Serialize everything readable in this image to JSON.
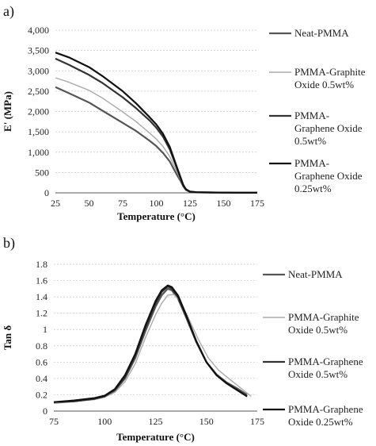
{
  "chart_data": [
    {
      "panel": "a)",
      "type": "line",
      "xlabel": "Temperature (°C)",
      "ylabel": "E' (MPa)",
      "xlim": [
        25,
        175
      ],
      "ylim": [
        0,
        4000
      ],
      "xticks": [
        "25",
        "50",
        "75",
        "100",
        "125",
        "150",
        "175"
      ],
      "yticks": [
        "0",
        "500",
        "1,000",
        "1,500",
        "2,000",
        "2,500",
        "3,000",
        "3,500",
        "4,000"
      ],
      "grid": true,
      "legend_position": "right",
      "series": [
        {
          "name": "Neat-PMMA",
          "color": "#555555",
          "x": [
            25,
            35,
            50,
            60,
            75,
            85,
            95,
            100,
            105,
            110,
            115,
            118,
            120,
            122,
            125,
            130,
            140,
            150,
            160,
            170,
            175
          ],
          "y": [
            2600,
            2450,
            2220,
            2020,
            1720,
            1520,
            1280,
            1150,
            980,
            770,
            460,
            290,
            160,
            70,
            25,
            12,
            8,
            5,
            4,
            3,
            3
          ]
        },
        {
          "name": "PMMA-Graphite Oxide 0.5wt%",
          "color": "#aaaaaa",
          "x": [
            25,
            35,
            50,
            60,
            75,
            85,
            95,
            100,
            105,
            110,
            115,
            118,
            120,
            122,
            125,
            130,
            140,
            150,
            160,
            170,
            175
          ],
          "y": [
            2830,
            2720,
            2520,
            2330,
            1990,
            1750,
            1470,
            1320,
            1140,
            890,
            540,
            320,
            170,
            80,
            30,
            14,
            9,
            6,
            4,
            3,
            3
          ]
        },
        {
          "name": "PMMA-Graphene Oxide 0.5wt%",
          "color": "#333333",
          "x": [
            25,
            35,
            50,
            60,
            75,
            85,
            95,
            100,
            105,
            110,
            115,
            118,
            120,
            122,
            125,
            130,
            140,
            150,
            160,
            170,
            175
          ],
          "y": [
            3300,
            3150,
            2900,
            2700,
            2350,
            2080,
            1780,
            1600,
            1380,
            1070,
            630,
            360,
            185,
            85,
            30,
            14,
            9,
            6,
            4,
            3,
            3
          ]
        },
        {
          "name": "PMMA-Graphene Oxide 0.25wt%",
          "color": "#111111",
          "x": [
            25,
            35,
            50,
            60,
            75,
            85,
            95,
            100,
            105,
            110,
            115,
            118,
            120,
            122,
            125,
            130,
            140,
            150,
            160,
            170,
            175
          ],
          "y": [
            3450,
            3330,
            3090,
            2870,
            2500,
            2200,
            1860,
            1680,
            1450,
            1130,
            660,
            380,
            195,
            90,
            32,
            15,
            9,
            6,
            4,
            3,
            3
          ]
        }
      ]
    },
    {
      "panel": "b)",
      "type": "line",
      "xlabel": "Temperature (°C)",
      "ylabel": "Tan δ",
      "xlim": [
        75,
        175
      ],
      "ylim": [
        0,
        1.8
      ],
      "xticks": [
        "75",
        "100",
        "125",
        "150",
        "175"
      ],
      "yticks": [
        "0",
        "0.2",
        "0.4",
        "0.6",
        "0.8",
        "1",
        "1.2",
        "1.4",
        "1.6",
        "1.8"
      ],
      "grid": true,
      "legend_position": "right",
      "series": [
        {
          "name": "Neat-PMMA",
          "color": "#555555",
          "x": [
            75,
            85,
            95,
            100,
            105,
            110,
            115,
            120,
            125,
            128,
            131,
            133,
            136,
            140,
            145,
            150,
            155,
            160,
            165,
            170
          ],
          "y": [
            0.1,
            0.12,
            0.15,
            0.18,
            0.25,
            0.4,
            0.65,
            0.98,
            1.28,
            1.42,
            1.5,
            1.48,
            1.38,
            1.15,
            0.85,
            0.6,
            0.45,
            0.35,
            0.28,
            0.2
          ]
        },
        {
          "name": "PMMA-Graphite Oxide 0.5wt%",
          "color": "#aaaaaa",
          "x": [
            75,
            85,
            95,
            100,
            105,
            110,
            115,
            120,
            125,
            128,
            131,
            134,
            137,
            141,
            146,
            151,
            156,
            161,
            166,
            172
          ],
          "y": [
            0.1,
            0.12,
            0.14,
            0.17,
            0.23,
            0.36,
            0.58,
            0.9,
            1.18,
            1.32,
            1.42,
            1.43,
            1.35,
            1.15,
            0.88,
            0.65,
            0.5,
            0.4,
            0.3,
            0.18
          ]
        },
        {
          "name": "PMMA-Graphene Oxide 0.5wt%",
          "color": "#333333",
          "x": [
            75,
            85,
            95,
            100,
            105,
            110,
            115,
            120,
            125,
            128,
            131,
            133,
            136,
            140,
            145,
            150,
            155,
            160,
            165,
            170
          ],
          "y": [
            0.11,
            0.12,
            0.15,
            0.18,
            0.26,
            0.42,
            0.68,
            1.02,
            1.32,
            1.46,
            1.53,
            1.5,
            1.4,
            1.16,
            0.85,
            0.6,
            0.44,
            0.34,
            0.26,
            0.18
          ]
        },
        {
          "name": "PMMA-Graphene Oxide 0.25wt%",
          "color": "#111111",
          "x": [
            75,
            85,
            95,
            100,
            105,
            110,
            115,
            120,
            125,
            128,
            131,
            133,
            136,
            140,
            145,
            150,
            155,
            160,
            165,
            170
          ],
          "y": [
            0.11,
            0.13,
            0.16,
            0.19,
            0.27,
            0.44,
            0.7,
            1.05,
            1.35,
            1.48,
            1.54,
            1.52,
            1.42,
            1.18,
            0.86,
            0.6,
            0.44,
            0.34,
            0.26,
            0.18
          ]
        }
      ]
    }
  ],
  "legend_a": {
    "items": [
      {
        "lines": [
          "Neat-PMMA"
        ]
      },
      {
        "lines": [
          "PMMA-Graphite",
          "Oxide 0.5wt%"
        ]
      },
      {
        "lines": [
          "PMMA-",
          "Graphene Oxide",
          "0.5wt%"
        ]
      },
      {
        "lines": [
          "PMMA-",
          "Graphene Oxide",
          "0.25wt%"
        ]
      }
    ]
  },
  "legend_b": {
    "items": [
      {
        "lines": [
          "Neat-PMMA"
        ]
      },
      {
        "lines": [
          "PMMA-Graphite",
          "Oxide 0.5wt%"
        ]
      },
      {
        "lines": [
          "PMMA-Graphene",
          "Oxide 0.5wt%"
        ]
      },
      {
        "lines": [
          "PMMA-Graphene",
          "Oxide 0.25wt%"
        ]
      }
    ]
  }
}
